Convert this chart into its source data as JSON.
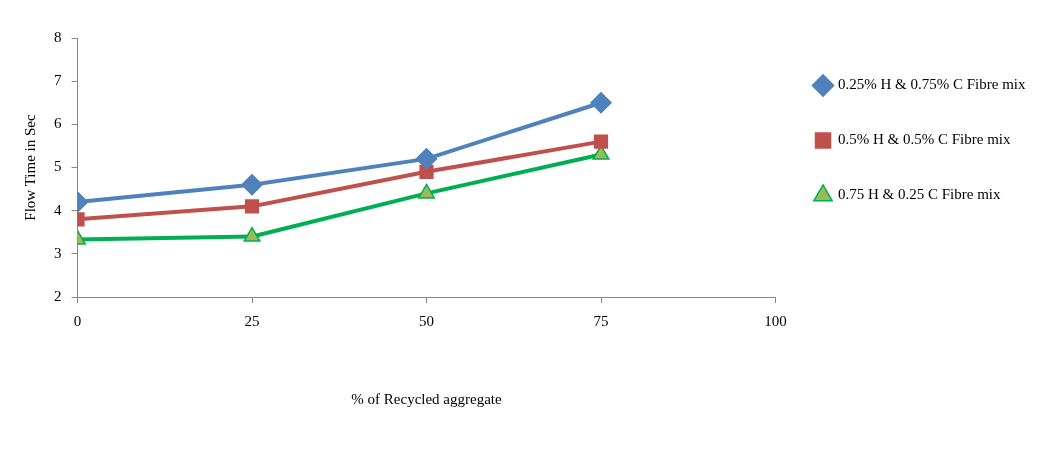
{
  "chart_data": {
    "type": "line",
    "x": [
      0,
      25,
      50,
      75
    ],
    "xlim": [
      0,
      100
    ],
    "xticks": [
      0,
      25,
      50,
      75,
      100
    ],
    "ylim": [
      2,
      8
    ],
    "yticks": [
      2,
      3,
      4,
      5,
      6,
      7,
      8
    ],
    "ylabel": "Flow Time in Sec",
    "xlabel": "% of Recycled aggregate",
    "grid": false,
    "legend": "right",
    "series": [
      {
        "name": "0.25% H & 0.75% C Fibre mix",
        "color": "#4f81bd",
        "marker": "diamond",
        "values": [
          4.2,
          4.6,
          5.2,
          6.5
        ]
      },
      {
        "name": "0.5% H & 0.5% C Fibre mix",
        "color": "#c0504d",
        "marker": "square",
        "values": [
          3.8,
          4.1,
          4.9,
          5.6
        ]
      },
      {
        "name": "0.75 H & 0.25 C Fibre mix",
        "color": "#00b050",
        "marker": "triangle",
        "values": [
          3.33,
          3.4,
          4.4,
          5.3
        ]
      }
    ]
  }
}
